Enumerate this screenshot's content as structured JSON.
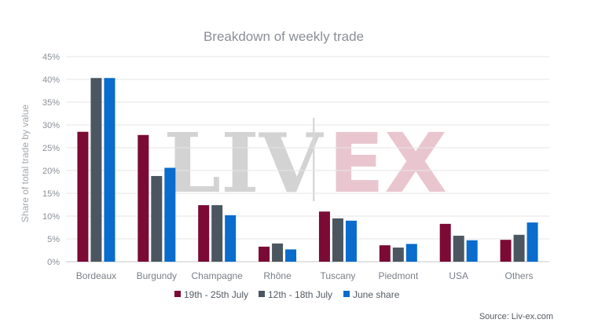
{
  "watermark": {
    "left": "LIV",
    "right": "EX"
  },
  "source": "Source: Liv-ex.com",
  "chart_data": {
    "type": "bar",
    "title": "Breakdown of weekly trade",
    "xlabel": "",
    "ylabel": "Share of total trade by value",
    "ylim": [
      0,
      45
    ],
    "ytick_step": 5,
    "ytick_suffix": "%",
    "grid": true,
    "legend_position": "bottom",
    "categories": [
      "Bordeaux",
      "Burgundy",
      "Champagne",
      "Rhône",
      "Tuscany",
      "Piedmont",
      "USA",
      "Others"
    ],
    "series": [
      {
        "name": "19th - 25th July",
        "color": "#7b0a35",
        "values": [
          28.5,
          27.8,
          12.4,
          3.3,
          11.0,
          3.6,
          8.3,
          4.8
        ]
      },
      {
        "name": "12th - 18th July",
        "color": "#4b5660",
        "values": [
          40.3,
          18.8,
          12.4,
          4.0,
          9.5,
          3.1,
          5.7,
          5.9
        ]
      },
      {
        "name": "June share",
        "color": "#0a6ccc",
        "values": [
          40.3,
          20.6,
          10.2,
          2.7,
          9.0,
          3.9,
          4.7,
          8.6
        ]
      }
    ]
  }
}
